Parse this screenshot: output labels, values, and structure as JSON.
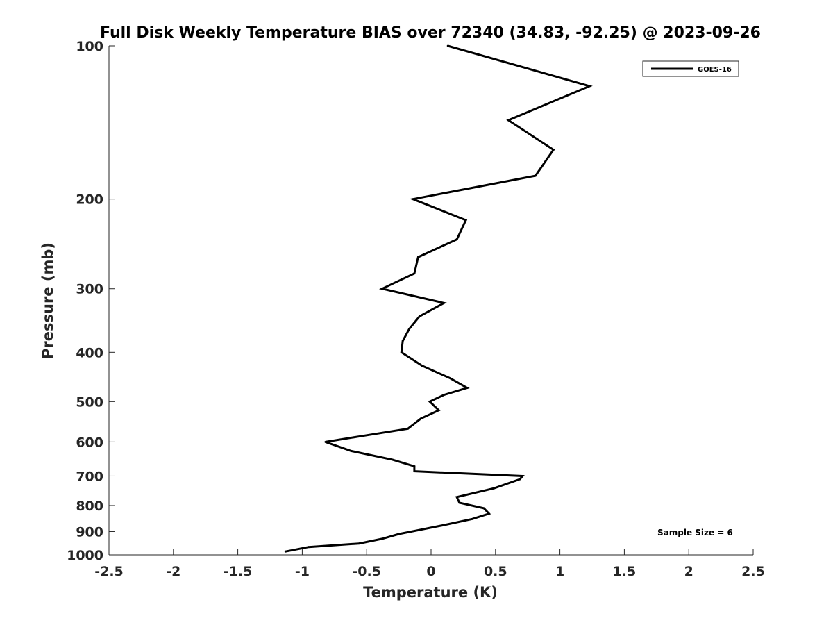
{
  "chart_data": {
    "type": "line",
    "title": "Full Disk Weekly Temperature BIAS over 72340 (34.83, -92.25) @ 2023-09-26",
    "xlabel": "Temperature (K)",
    "ylabel": "Pressure (mb)",
    "xlim": [
      -2.5,
      2.5
    ],
    "ylim": [
      100,
      1000
    ],
    "y_scale": "log",
    "y_reversed": true,
    "x_ticks": [
      "-2.5",
      "-2",
      "-1.5",
      "-1",
      "-0.5",
      "0",
      "0.5",
      "1",
      "1.5",
      "2",
      "2.5"
    ],
    "y_ticks": [
      "100",
      "200",
      "300",
      "400",
      "500",
      "600",
      "700",
      "800",
      "900",
      "1000"
    ],
    "grid": false,
    "legend_position": "top-right",
    "annotation": "Sample Size = 6",
    "series": [
      {
        "name": "GOES-16",
        "color": "#000000",
        "points": [
          {
            "x": 0.13,
            "p": 100
          },
          {
            "x": 1.23,
            "p": 120
          },
          {
            "x": 0.6,
            "p": 140
          },
          {
            "x": 0.95,
            "p": 160
          },
          {
            "x": 0.81,
            "p": 180
          },
          {
            "x": -0.14,
            "p": 200
          },
          {
            "x": 0.27,
            "p": 220
          },
          {
            "x": 0.2,
            "p": 240
          },
          {
            "x": -0.1,
            "p": 260
          },
          {
            "x": -0.13,
            "p": 280
          },
          {
            "x": -0.38,
            "p": 300
          },
          {
            "x": 0.1,
            "p": 320
          },
          {
            "x": -0.09,
            "p": 340
          },
          {
            "x": -0.17,
            "p": 360
          },
          {
            "x": -0.22,
            "p": 380
          },
          {
            "x": -0.23,
            "p": 400
          },
          {
            "x": -0.07,
            "p": 425
          },
          {
            "x": 0.15,
            "p": 450
          },
          {
            "x": 0.28,
            "p": 470
          },
          {
            "x": 0.1,
            "p": 485
          },
          {
            "x": -0.01,
            "p": 500
          },
          {
            "x": 0.06,
            "p": 520
          },
          {
            "x": -0.08,
            "p": 540
          },
          {
            "x": -0.18,
            "p": 565
          },
          {
            "x": -0.55,
            "p": 585
          },
          {
            "x": -0.82,
            "p": 600
          },
          {
            "x": -0.62,
            "p": 625
          },
          {
            "x": -0.3,
            "p": 650
          },
          {
            "x": -0.13,
            "p": 670
          },
          {
            "x": -0.13,
            "p": 685
          },
          {
            "x": 0.71,
            "p": 700
          },
          {
            "x": 0.69,
            "p": 710
          },
          {
            "x": 0.49,
            "p": 740
          },
          {
            "x": 0.2,
            "p": 770
          },
          {
            "x": 0.22,
            "p": 790
          },
          {
            "x": 0.41,
            "p": 810
          },
          {
            "x": 0.45,
            "p": 830
          },
          {
            "x": 0.32,
            "p": 850
          },
          {
            "x": 0.09,
            "p": 875
          },
          {
            "x": -0.25,
            "p": 910
          },
          {
            "x": -0.38,
            "p": 930
          },
          {
            "x": -0.56,
            "p": 950
          },
          {
            "x": -0.95,
            "p": 965
          },
          {
            "x": -1.13,
            "p": 985
          }
        ]
      }
    ]
  }
}
